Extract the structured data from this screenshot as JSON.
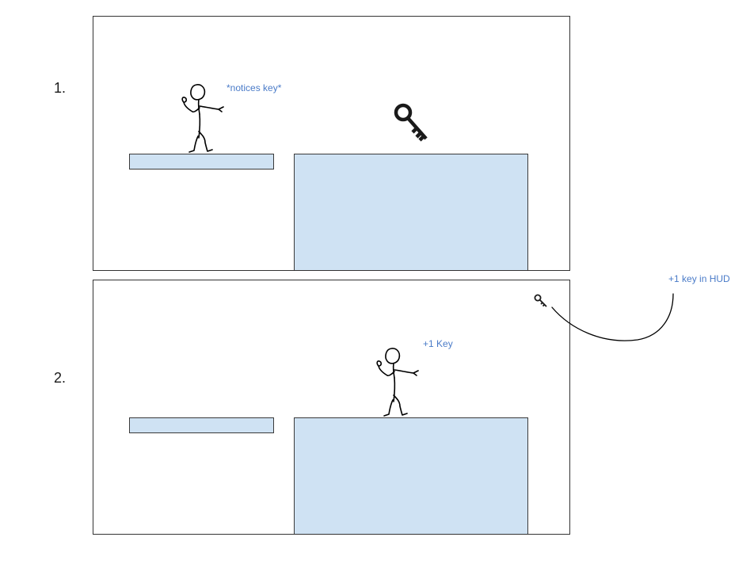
{
  "colors": {
    "platform_fill": "#cfe2f3",
    "annotation_text": "#4a7bc8",
    "stroke": "#000000",
    "key": "#1a1a1a"
  },
  "frames": [
    {
      "step": "1.",
      "annotation": "*notices key*",
      "key_visible": true
    },
    {
      "step": "2.",
      "annotation": "+1 Key",
      "hud_icon": "key-icon"
    }
  ],
  "callout": {
    "text": "+1 key in HUD"
  },
  "icons": {
    "key": "key-icon",
    "character": "stick-figure-icon"
  }
}
